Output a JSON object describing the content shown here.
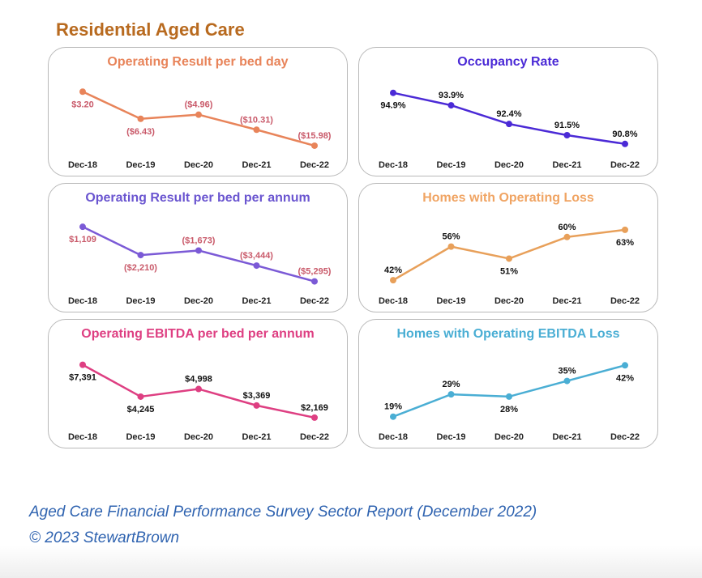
{
  "page_title": "Residential Aged Care",
  "footer": {
    "line1": "Aged Care Financial Performance Survey Sector Report (December 2022)",
    "line2": "© 2023 StewartBrown"
  },
  "chart_data": [
    {
      "type": "line",
      "title": "Operating Result per bed day",
      "color": "#e8845a",
      "title_color": "#e8845a",
      "label_color": "#c95a6a",
      "categories": [
        "Dec-18",
        "Dec-19",
        "Dec-20",
        "Dec-21",
        "Dec-22"
      ],
      "values": [
        3.2,
        -6.43,
        -4.96,
        -10.31,
        -15.98
      ],
      "labels": [
        "$3.20",
        "($6.43)",
        "($4.96)",
        "($10.31)",
        "($15.98)"
      ],
      "ylim": [
        -18,
        5
      ]
    },
    {
      "type": "line",
      "title": "Occupancy Rate",
      "color": "#4b2ad6",
      "title_color": "#4b2ad6",
      "label_color": "#111111",
      "categories": [
        "Dec-18",
        "Dec-19",
        "Dec-20",
        "Dec-21",
        "Dec-22"
      ],
      "values": [
        94.9,
        93.9,
        92.4,
        91.5,
        90.8
      ],
      "labels": [
        "94.9%",
        "93.9%",
        "92.4%",
        "91.5%",
        "90.8%"
      ],
      "ylim": [
        90.2,
        95.4
      ]
    },
    {
      "type": "line",
      "title": "Operating Result per bed per annum",
      "color": "#7b5ad6",
      "title_color": "#6a55d0",
      "label_color": "#c95a6a",
      "categories": [
        "Dec-18",
        "Dec-19",
        "Dec-20",
        "Dec-21",
        "Dec-22"
      ],
      "values": [
        1109,
        -2210,
        -1673,
        -3444,
        -5295
      ],
      "labels": [
        "$1,109",
        "($2,210)",
        "($1,673)",
        "($3,444)",
        "($5,295)"
      ],
      "ylim": [
        -6000,
        1600
      ]
    },
    {
      "type": "line",
      "title": "Homes with Operating Loss",
      "color": "#e8a05a",
      "title_color": "#f0a463",
      "label_color": "#111111",
      "categories": [
        "Dec-18",
        "Dec-19",
        "Dec-20",
        "Dec-21",
        "Dec-22"
      ],
      "values": [
        42,
        56,
        51,
        60,
        63
      ],
      "labels": [
        "42%",
        "56%",
        "51%",
        "60%",
        "63%"
      ],
      "ylim": [
        39,
        66
      ]
    },
    {
      "type": "line",
      "title": "Operating EBITDA per bed per annum",
      "color": "#de3f82",
      "title_color": "#de3f82",
      "label_color": "#111111",
      "categories": [
        "Dec-18",
        "Dec-19",
        "Dec-20",
        "Dec-21",
        "Dec-22"
      ],
      "values": [
        7391,
        4245,
        4998,
        3369,
        2169
      ],
      "labels": [
        "$7,391",
        "$4,245",
        "$4,998",
        "$3,369",
        "$2,169"
      ],
      "ylim": [
        1600,
        8000
      ]
    },
    {
      "type": "line",
      "title": "Homes with Operating EBITDA Loss",
      "color": "#4aaed4",
      "title_color": "#4aaed4",
      "label_color": "#111111",
      "categories": [
        "Dec-18",
        "Dec-19",
        "Dec-20",
        "Dec-21",
        "Dec-22"
      ],
      "values": [
        19,
        29,
        28,
        35,
        42
      ],
      "labels": [
        "19%",
        "29%",
        "28%",
        "35%",
        "42%"
      ],
      "ylim": [
        16,
        45
      ]
    }
  ]
}
